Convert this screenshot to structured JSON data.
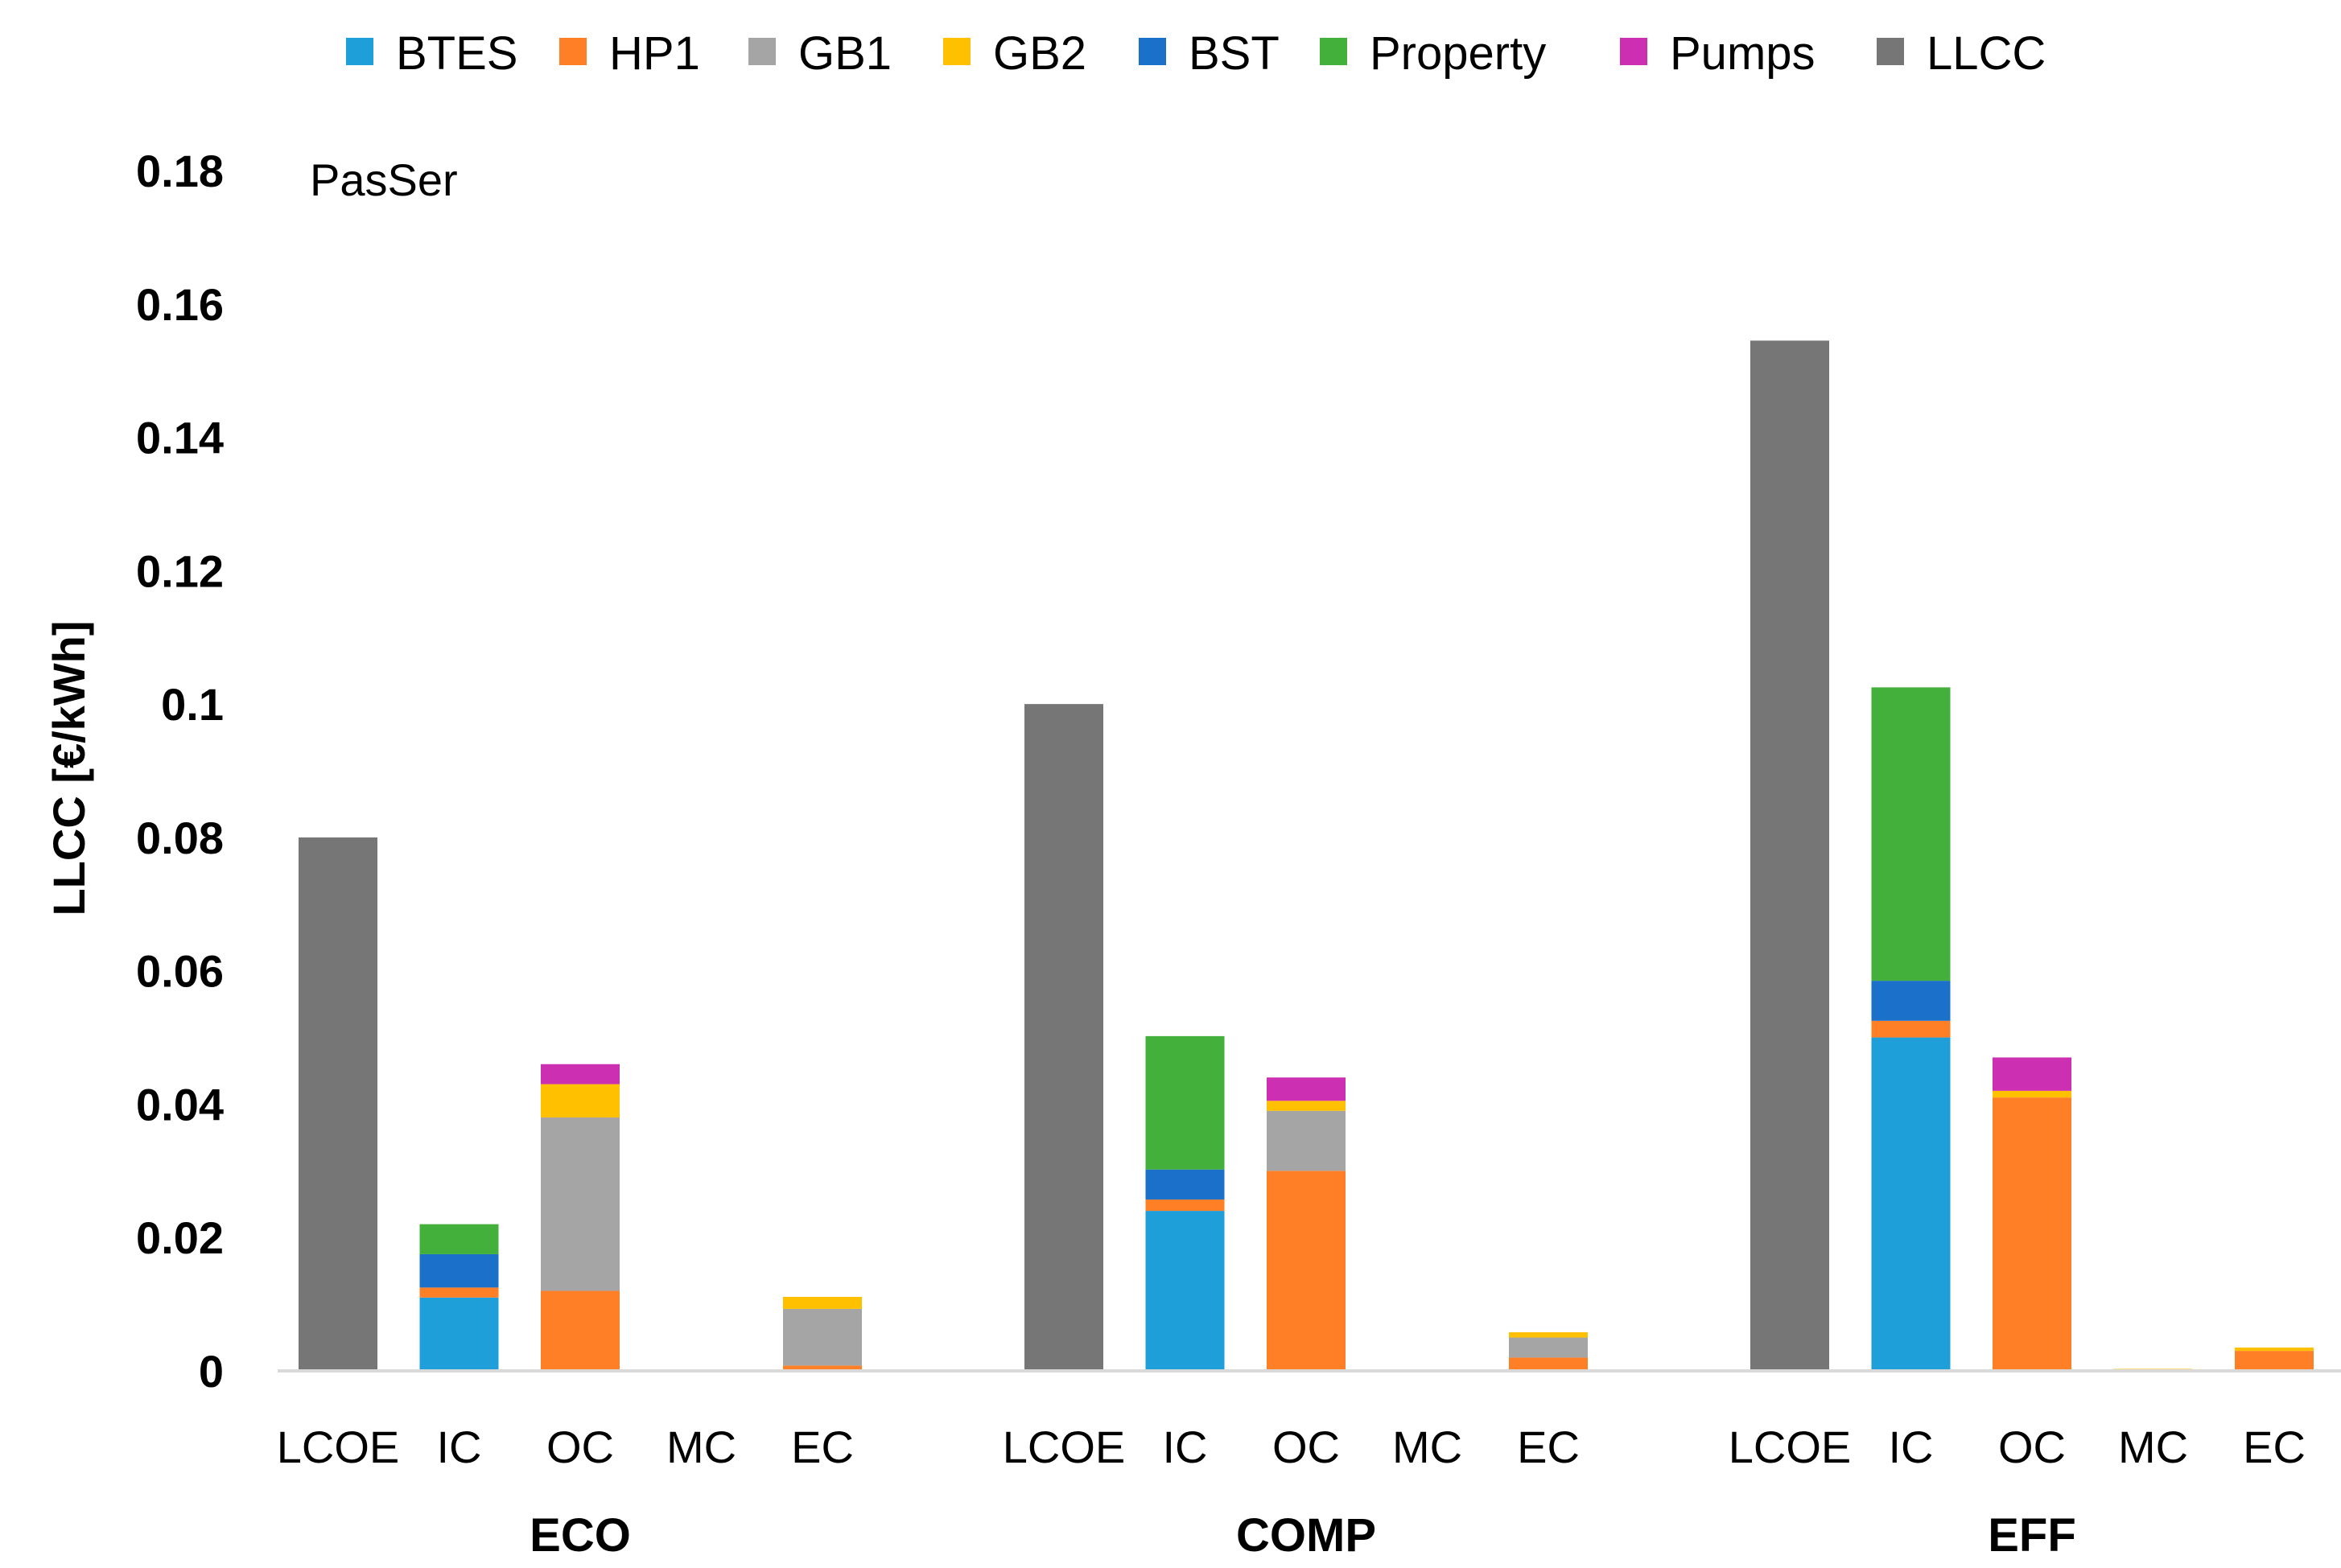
{
  "chart_data": {
    "type": "bar",
    "stacked": true,
    "title": "",
    "annotation": "PasSer",
    "xlabel": "",
    "ylabel": "LLCC [€/kWh]",
    "ylim": [
      0,
      0.18
    ],
    "yticks": [
      "0",
      "0.02",
      "0.04",
      "0.06",
      "0.08",
      "0.1",
      "0.12",
      "0.14",
      "0.16",
      "0.18"
    ],
    "grid": false,
    "legend_position": "top",
    "groups": [
      "ECO",
      "COMP",
      "EFF"
    ],
    "categories": [
      "LCOE",
      "IC",
      "OC",
      "MC",
      "EC"
    ],
    "series": [
      {
        "name": "BTES",
        "color": "#1f9fda",
        "values": [
          [
            0,
            0.011,
            0,
            0,
            0
          ],
          [
            0,
            0.024,
            0,
            0,
            0
          ],
          [
            0,
            0.05,
            0,
            0,
            0
          ]
        ]
      },
      {
        "name": "HP1",
        "color": "#ff7f27",
        "values": [
          [
            0,
            0.0015,
            0.012,
            0,
            0.0008
          ],
          [
            0,
            0.0017,
            0.03,
            0,
            0.002
          ],
          [
            0,
            0.0025,
            0.041,
            0,
            0.003
          ]
        ]
      },
      {
        "name": "GB1",
        "color": "#a5a5a5",
        "values": [
          [
            0,
            0,
            0.026,
            0,
            0.0085
          ],
          [
            0,
            0,
            0.009,
            0,
            0.003
          ],
          [
            0,
            0,
            0,
            0,
            0
          ]
        ]
      },
      {
        "name": "GB2",
        "color": "#ffc000",
        "values": [
          [
            0,
            0,
            0.005,
            0,
            0.0018
          ],
          [
            0,
            0,
            0.0015,
            0,
            0.0008
          ],
          [
            0,
            0,
            0.001,
            0.0003,
            0.0005
          ]
        ]
      },
      {
        "name": "BST",
        "color": "#1b71c9",
        "values": [
          [
            0,
            0.005,
            0,
            0,
            0
          ],
          [
            0,
            0.0045,
            0,
            0,
            0
          ],
          [
            0,
            0.006,
            0,
            0,
            0
          ]
        ]
      },
      {
        "name": "Property",
        "color": "#44b03c",
        "values": [
          [
            0,
            0.0045,
            0,
            0,
            0
          ],
          [
            0,
            0.02,
            0,
            0,
            0
          ],
          [
            0,
            0.044,
            0,
            0,
            0
          ]
        ]
      },
      {
        "name": "Pumps",
        "color": "#cc2fb2",
        "values": [
          [
            0,
            0,
            0.003,
            0,
            0
          ],
          [
            0,
            0,
            0.0035,
            0,
            0
          ],
          [
            0,
            0,
            0.005,
            0,
            0
          ]
        ]
      },
      {
        "name": "LLCC",
        "color": "#767676",
        "values": [
          [
            0.08,
            0,
            0,
            0,
            0
          ],
          [
            0.1,
            0,
            0,
            0,
            0
          ],
          [
            0.1545,
            0,
            0,
            0,
            0
          ]
        ]
      }
    ]
  }
}
